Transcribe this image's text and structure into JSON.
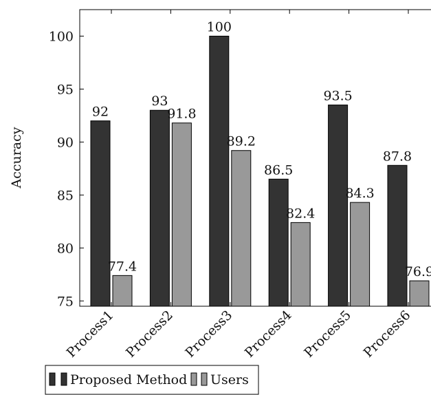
{
  "chart_data": {
    "type": "bar",
    "categories": [
      "Process1",
      "Process2",
      "Process3",
      "Process4",
      "Process5",
      "Process6"
    ],
    "series": [
      {
        "name": "Proposed Method",
        "values": [
          92,
          93,
          100,
          86.5,
          93.5,
          87.8
        ],
        "labels": [
          "92",
          "93",
          "100",
          "86.5",
          "93.5",
          "87.8"
        ],
        "color": "#333333"
      },
      {
        "name": "Users",
        "values": [
          77.4,
          91.8,
          89.2,
          82.4,
          84.3,
          76.9
        ],
        "labels": [
          "77.4",
          "91.8",
          "89.2",
          "82.4",
          "84.3",
          "76.9"
        ],
        "color": "#999999"
      }
    ],
    "ylabel": "Accuracy",
    "yticks": [
      75,
      80,
      85,
      90,
      95,
      100
    ],
    "ylim": [
      74.5,
      102.5
    ],
    "grid": false,
    "legend_position": "bottom-left"
  }
}
